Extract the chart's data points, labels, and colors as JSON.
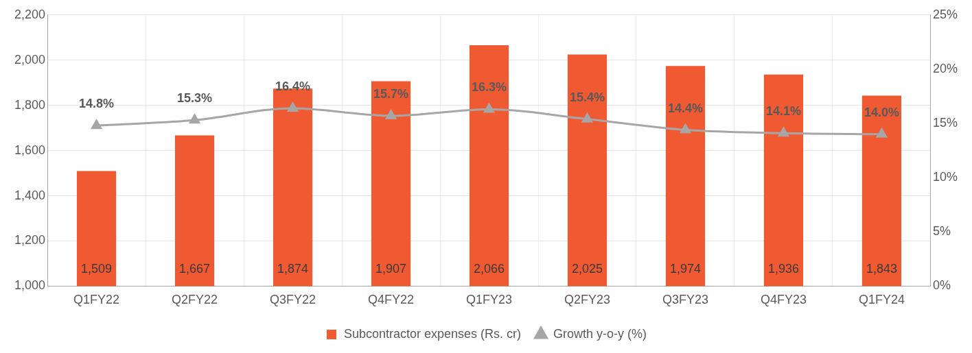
{
  "chart_data": {
    "type": "bar",
    "categories": [
      "Q1FY22",
      "Q2FY22",
      "Q3FY22",
      "Q4FY22",
      "Q1FY23",
      "Q2FY23",
      "Q3FY23",
      "Q4FY23",
      "Q1FY24"
    ],
    "series": [
      {
        "name": "Subcontractor expenses (Rs. cr)",
        "color": "#f05a32",
        "values": [
          1509,
          1667,
          1874,
          1907,
          2066,
          2025,
          1974,
          1936,
          1843
        ],
        "value_labels": [
          "1,509",
          "1,667",
          "1,874",
          "1,907",
          "2,066",
          "2,025",
          "1,974",
          "1,936",
          "1,843"
        ]
      },
      {
        "name": "Growth y-o-y (%)",
        "type": "line",
        "axis": "y2",
        "color": "#a6a6a6",
        "marker": "triangle",
        "values": [
          14.8,
          15.3,
          16.4,
          15.7,
          16.3,
          15.4,
          14.4,
          14.1,
          14.0
        ],
        "value_labels": [
          "14.8%",
          "15.3%",
          "16.4%",
          "15.7%",
          "16.3%",
          "15.4%",
          "14.4%",
          "14.1%",
          "14.0%"
        ]
      }
    ],
    "ylim": [
      1000,
      2200
    ],
    "yticks": [
      {
        "value": 1000,
        "label": "1,000"
      },
      {
        "value": 1200,
        "label": "1,200"
      },
      {
        "value": 1400,
        "label": "1,400"
      },
      {
        "value": 1600,
        "label": "1,600"
      },
      {
        "value": 1800,
        "label": "1,800"
      },
      {
        "value": 2000,
        "label": "2,000"
      },
      {
        "value": 2200,
        "label": "2,200"
      }
    ],
    "y2lim": [
      0,
      25
    ],
    "y2ticks": [
      {
        "value": 0,
        "label": "0%"
      },
      {
        "value": 5,
        "label": "5%"
      },
      {
        "value": 10,
        "label": "10%"
      },
      {
        "value": 15,
        "label": "15%"
      },
      {
        "value": 20,
        "label": "20%"
      },
      {
        "value": 25,
        "label": "25%"
      }
    ],
    "grid": true,
    "legend": "bottom"
  }
}
